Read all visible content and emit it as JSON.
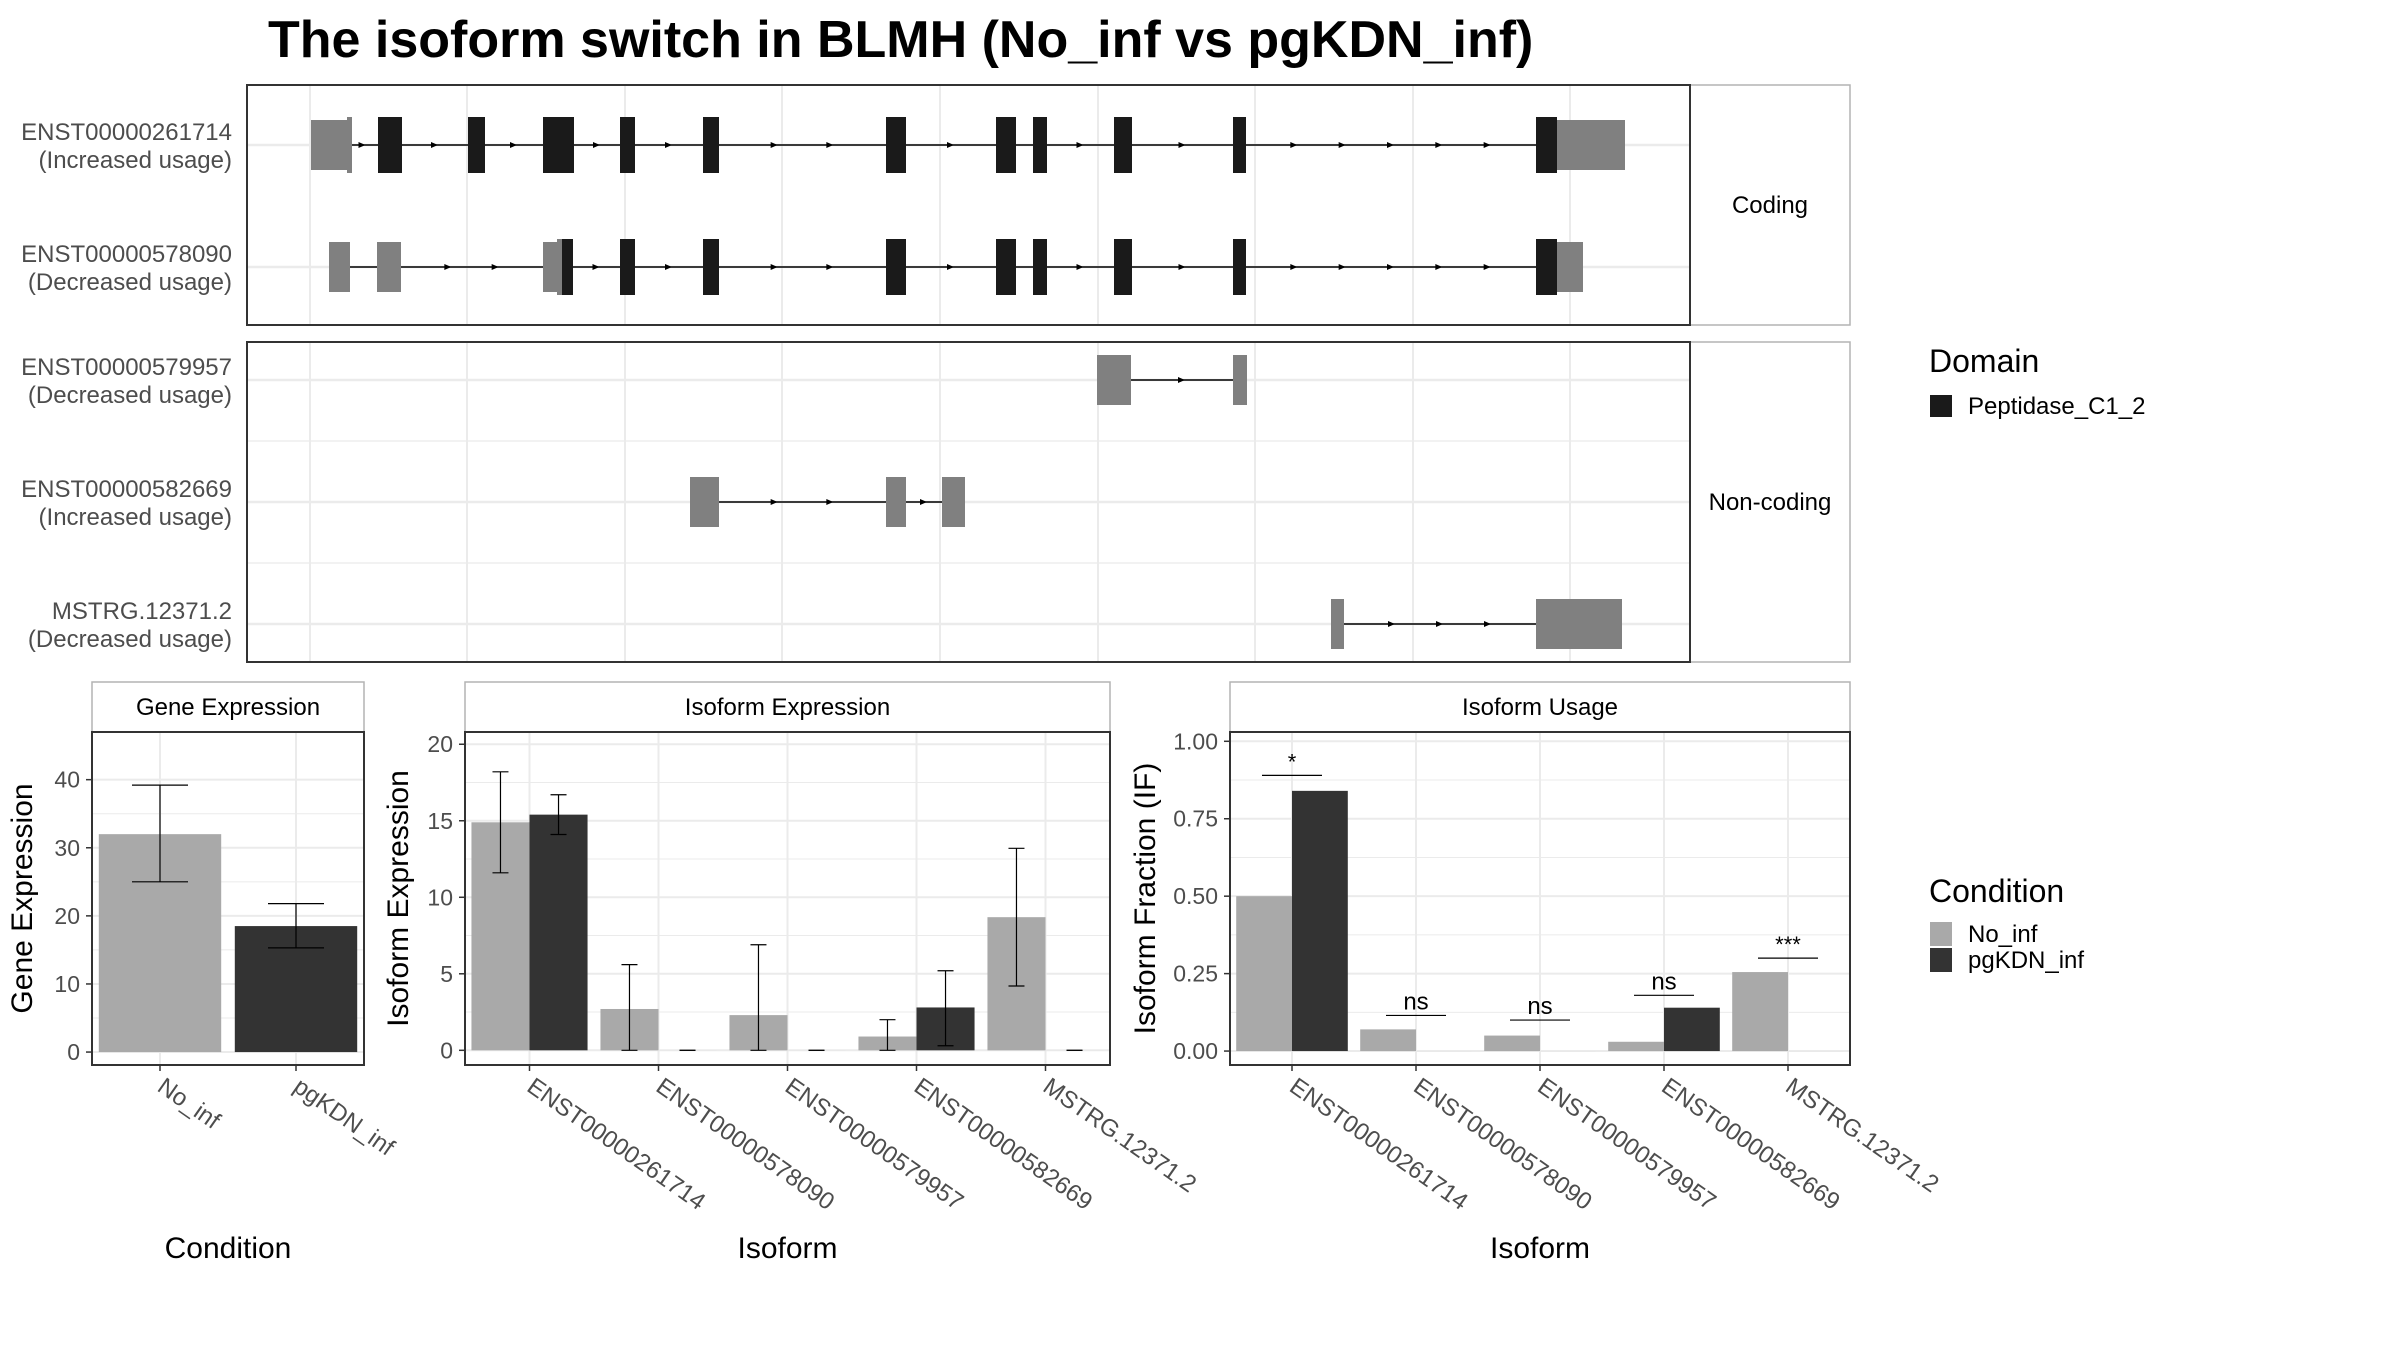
{
  "title": "The isoform switch in BLMH (No_inf vs pgKDN_inf)",
  "colors": {
    "no_inf": "#a9a9a9",
    "pgkdn_inf": "#333333",
    "domain": "#1a1a1a",
    "utr": "#808080",
    "grid": "#ebebeb",
    "panel_border": "#333333",
    "strip_border": "#b3b3b3"
  },
  "structure": {
    "facets": [
      {
        "label": "Coding",
        "transcripts": [
          {
            "id": "ENST00000261714",
            "usage": "(Increased usage)"
          },
          {
            "id": "ENST00000578090",
            "usage": "(Decreased usage)"
          }
        ]
      },
      {
        "label": "Non-coding",
        "transcripts": [
          {
            "id": "ENST00000579957",
            "usage": "(Decreased usage)"
          },
          {
            "id": "ENST00000582669",
            "usage": "(Increased usage)"
          },
          {
            "id": "MSTRG.12371.2",
            "usage": "(Decreased usage)"
          }
        ]
      }
    ]
  },
  "legends": {
    "domain": {
      "title": "Domain",
      "items": [
        {
          "label": "Peptidase_C1_2",
          "color": "#1a1a1a"
        }
      ]
    },
    "condition": {
      "title": "Condition",
      "items": [
        {
          "label": "No_inf",
          "color": "#a9a9a9"
        },
        {
          "label": "pgKDN_inf",
          "color": "#333333"
        }
      ]
    }
  },
  "chart_data": [
    {
      "type": "bar",
      "title": "Gene Expression",
      "xlabel": "Condition",
      "ylabel": "Gene Expression",
      "categories": [
        "No_inf",
        "pgKDN_inf"
      ],
      "values": [
        32.0,
        18.5
      ],
      "error_low": [
        25.0,
        15.3
      ],
      "error_high": [
        39.2,
        21.8
      ],
      "ylim": [
        -1.9,
        47
      ],
      "yticks": [
        0,
        10,
        20,
        30,
        40
      ]
    },
    {
      "type": "bar",
      "title": "Isoform Expression",
      "xlabel": "Isoform",
      "ylabel": "Isoform Expression",
      "categories": [
        "ENST00000261714",
        "ENST00000578090",
        "ENST00000579957",
        "ENST00000582669",
        "MSTRG.12371.2"
      ],
      "series": [
        {
          "name": "No_inf",
          "values": [
            14.9,
            2.7,
            2.3,
            0.9,
            8.7
          ],
          "error_low": [
            11.6,
            0.0,
            0.0,
            0.0,
            4.2
          ],
          "error_high": [
            18.2,
            5.6,
            6.9,
            2.0,
            13.2
          ]
        },
        {
          "name": "pgKDN_inf",
          "values": [
            15.4,
            0.0,
            0.0,
            2.8,
            0.0
          ],
          "error_low": [
            14.1,
            0.0,
            0.0,
            0.3,
            0.0
          ],
          "error_high": [
            16.7,
            0.0,
            0.0,
            5.2,
            0.0
          ]
        }
      ],
      "ylim": [
        -0.96,
        20.8
      ],
      "yticks": [
        0,
        5,
        10,
        15,
        20
      ]
    },
    {
      "type": "bar",
      "title": "Isoform Usage",
      "xlabel": "Isoform",
      "ylabel": "Isoform Fraction (IF)",
      "categories": [
        "ENST00000261714",
        "ENST00000578090",
        "ENST00000579957",
        "ENST00000582669",
        "MSTRG.12371.2"
      ],
      "series": [
        {
          "name": "No_inf",
          "values": [
            0.5,
            0.07,
            0.05,
            0.03,
            0.255
          ]
        },
        {
          "name": "pgKDN_inf",
          "values": [
            0.84,
            0.0,
            0.0,
            0.14,
            0.0
          ]
        }
      ],
      "significance": [
        "*",
        "ns",
        "ns",
        "ns",
        "***"
      ],
      "sig_line_y": [
        0.89,
        0.115,
        0.1,
        0.18,
        0.3
      ],
      "ylim": [
        -0.045,
        1.03
      ],
      "yticks": [
        0.0,
        0.25,
        0.5,
        0.75,
        1.0
      ],
      "ytick_labels": [
        "0.00",
        "0.25",
        "0.50",
        "0.75",
        "1.00"
      ]
    }
  ]
}
